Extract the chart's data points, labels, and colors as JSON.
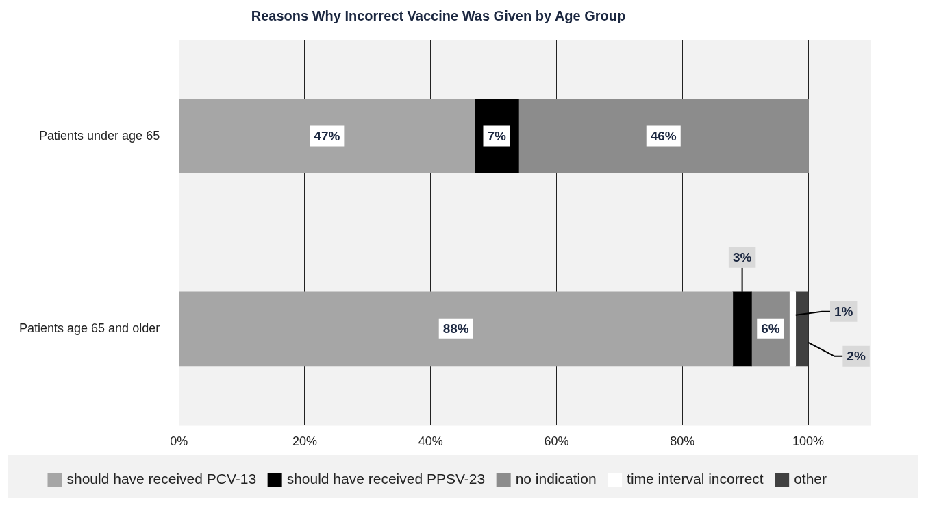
{
  "chart_data": {
    "type": "bar",
    "title": "Reasons Why Incorrect Vaccine Was Given by Age Group",
    "orientation": "horizontal",
    "stacked": true,
    "categories": [
      "Patients under age 65",
      "Patients age 65 and older"
    ],
    "series": [
      {
        "name": "should have received PCV-13",
        "color": "#a6a6a6",
        "values": [
          47,
          88
        ],
        "value_labels": [
          "47%",
          "88%"
        ]
      },
      {
        "name": "should have received PPSV-23",
        "color": "#000000",
        "values": [
          7,
          3
        ],
        "value_labels": [
          "7%",
          "3%"
        ]
      },
      {
        "name": "no indication",
        "color": "#8c8c8c",
        "values": [
          46,
          6
        ],
        "value_labels": [
          "46%",
          "6%"
        ]
      },
      {
        "name": "time interval incorrect",
        "color": "#ffffff",
        "values": [
          0,
          1
        ],
        "value_labels": [
          null,
          "1%"
        ]
      },
      {
        "name": "other",
        "color": "#404040",
        "values": [
          0,
          2
        ],
        "value_labels": [
          null,
          "2%"
        ]
      }
    ],
    "xlim": [
      0,
      110
    ],
    "xticks": [
      {
        "value": 0,
        "label": "0%"
      },
      {
        "value": 20,
        "label": "20%"
      },
      {
        "value": 40,
        "label": "40%"
      },
      {
        "value": 60,
        "label": "60%"
      },
      {
        "value": 80,
        "label": "80%"
      },
      {
        "value": 100,
        "label": "100%"
      }
    ],
    "grid": "x",
    "legend": "bottom"
  }
}
